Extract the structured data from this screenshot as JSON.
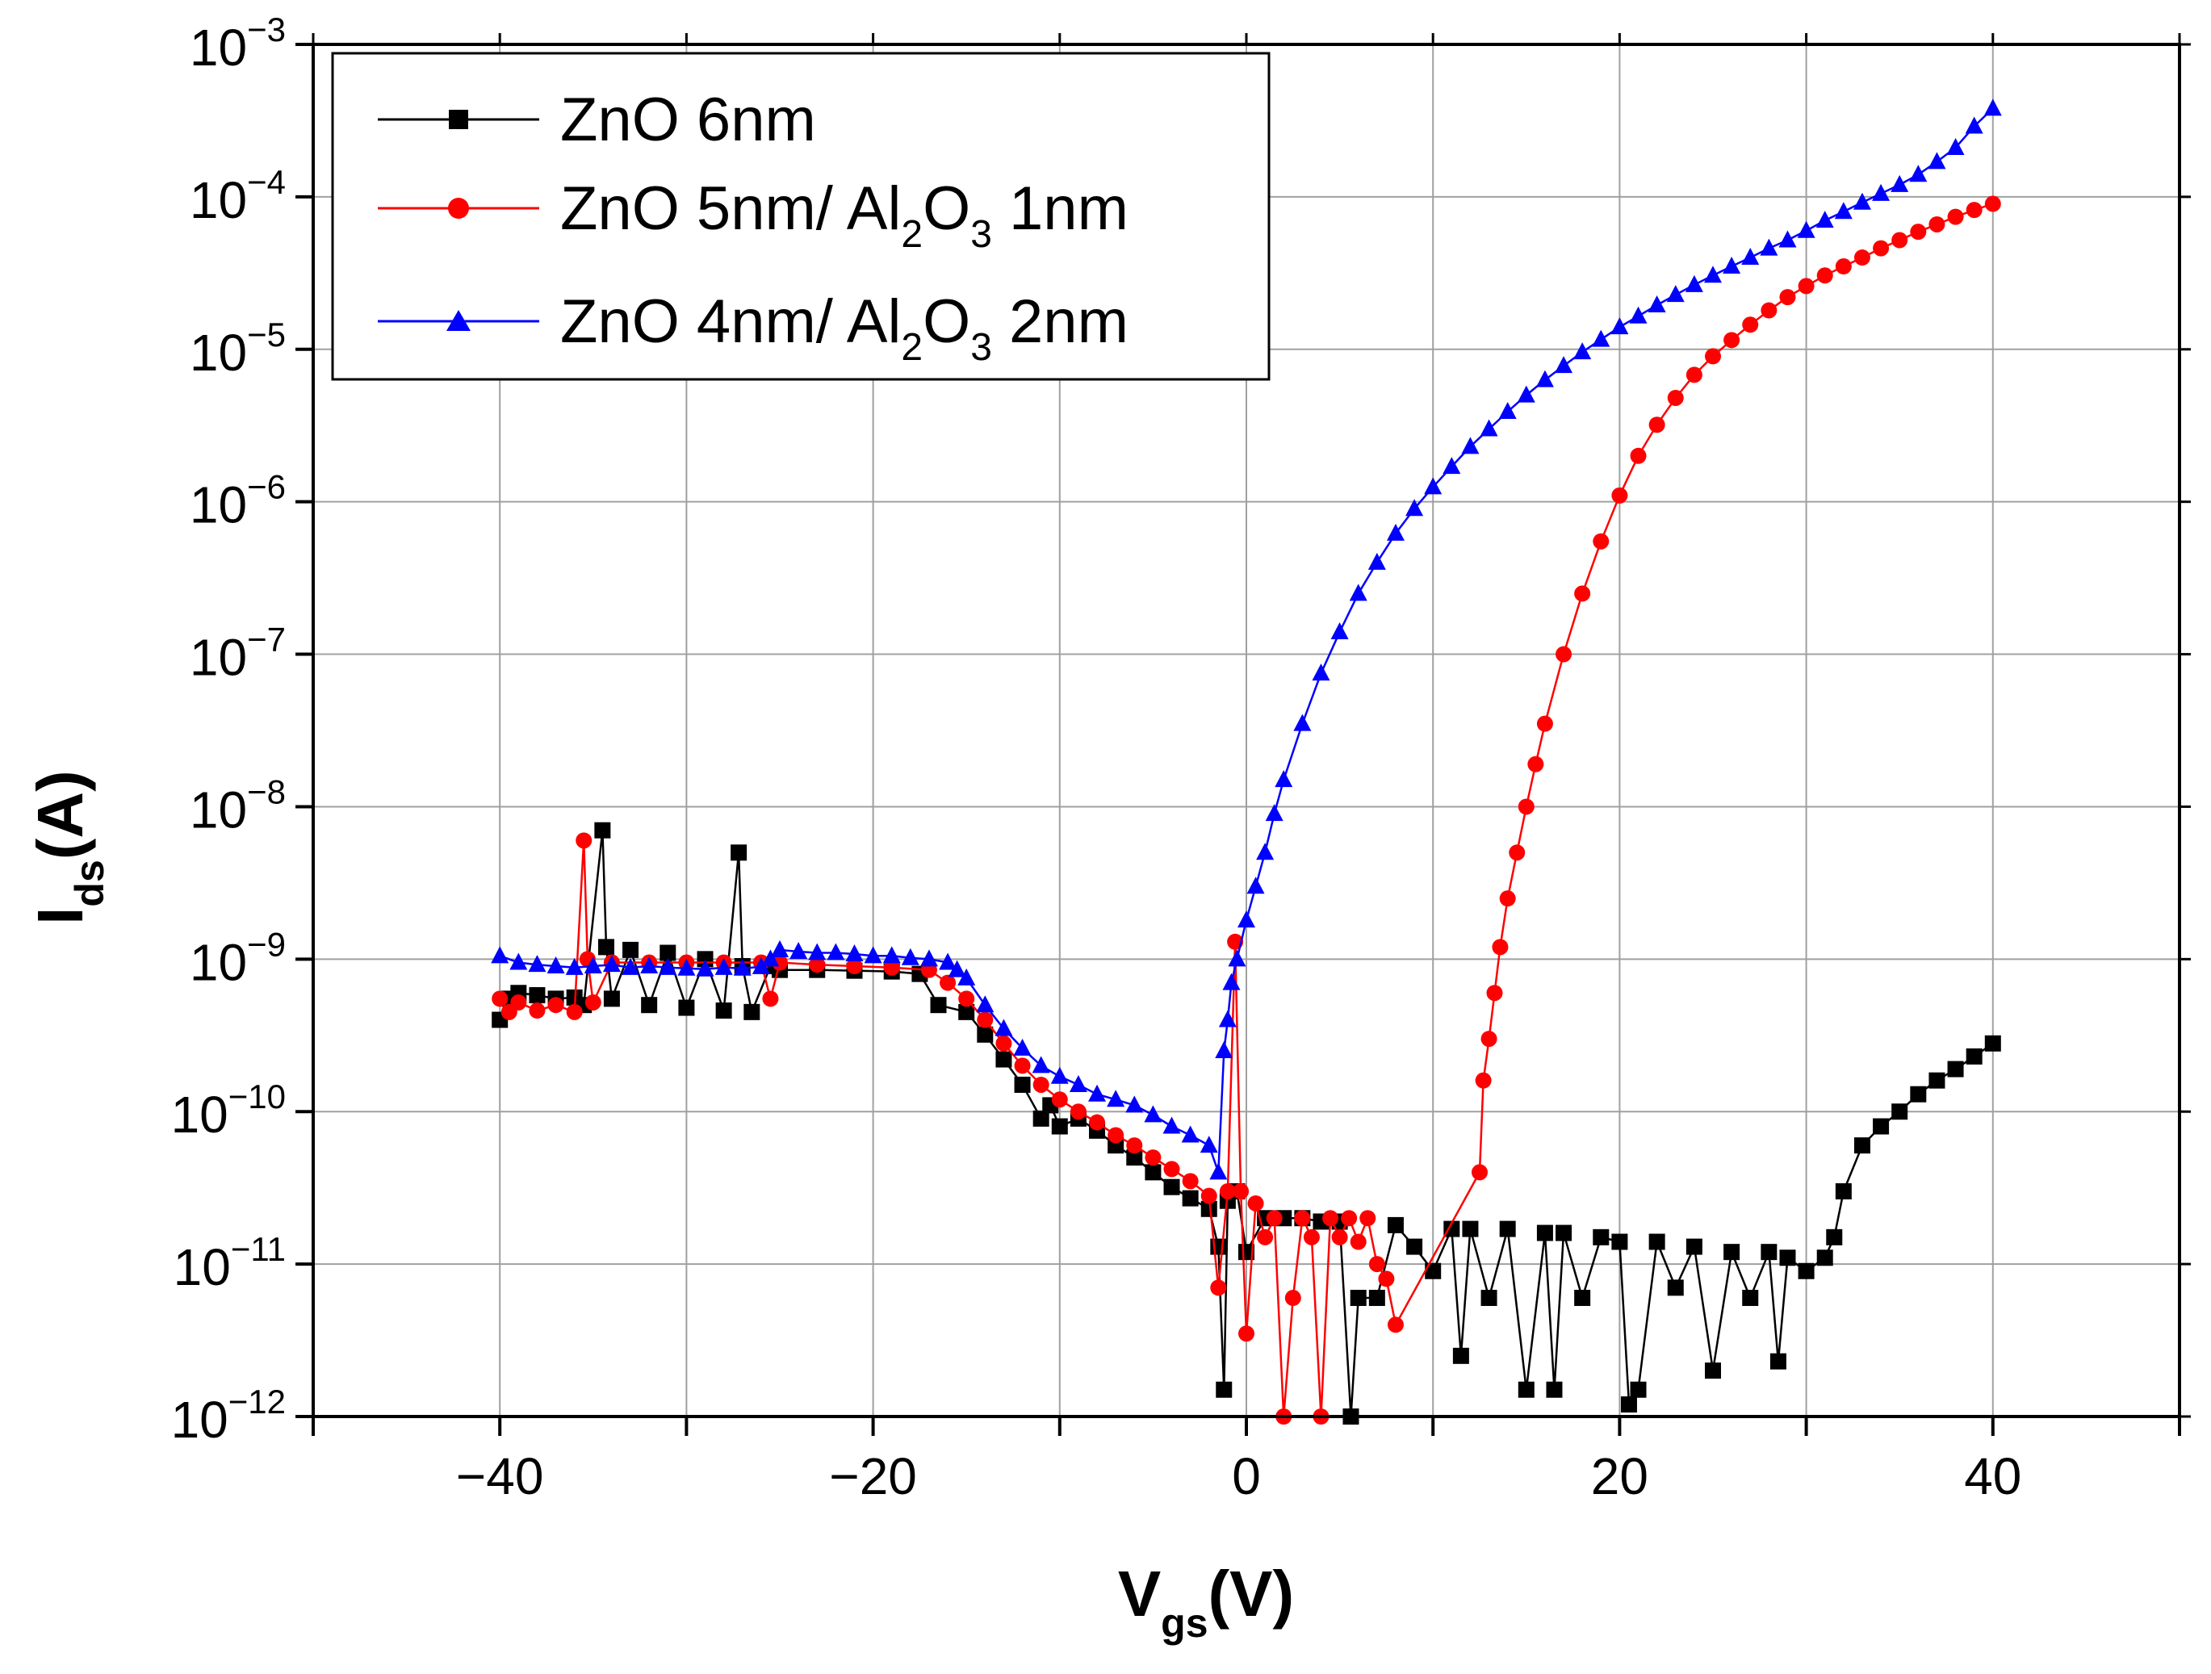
{
  "chart_data": {
    "type": "scatter",
    "xlabel": {
      "main": "V",
      "sub": "gs",
      "unit": "(V)"
    },
    "ylabel": {
      "main": "I",
      "sub": "ds",
      "unit": "(A)"
    },
    "xlim": [
      -50,
      50
    ],
    "ylim_exp": [
      -12,
      -3
    ],
    "y_scale": "log",
    "grid": true,
    "x_tick_labels": [
      "−40",
      "−20",
      "0",
      "20",
      "40"
    ],
    "x_tick_values": [
      -40,
      -20,
      0,
      20,
      40
    ],
    "y_tick_base": "10",
    "y_tick_exponents": [
      "−12",
      "−11",
      "−10",
      "−9",
      "−8",
      "−7",
      "−6",
      "−5",
      "−4",
      "−3"
    ],
    "legend_position": "top-left",
    "legend": [
      {
        "text": "ZnO 6nm",
        "color": "#000000",
        "marker": "square"
      },
      {
        "text": "ZnO 5nm/ Al",
        "sub1": "2",
        "mid": "O",
        "sub2": "3",
        "tail": " 1nm",
        "color": "#ff0000",
        "marker": "circle"
      },
      {
        "text": "ZnO 4nm/ Al",
        "sub1": "2",
        "mid": "O",
        "sub2": "3",
        "tail": " 2nm",
        "color": "#0000ff",
        "marker": "triangle"
      }
    ],
    "series": [
      {
        "name": "ZnO 6nm",
        "color": "#000000",
        "marker": "square",
        "points": [
          [
            -40,
            4e-10
          ],
          [
            -39.5,
            5.5e-10
          ],
          [
            -39,
            6e-10
          ],
          [
            -38,
            5.8e-10
          ],
          [
            -37,
            5.5e-10
          ],
          [
            -36,
            5.6e-10
          ],
          [
            -35.5,
            5e-10
          ],
          [
            -34.5,
            7e-09
          ],
          [
            -34.3,
            1.2e-09
          ],
          [
            -34,
            5.5e-10
          ],
          [
            -33,
            1.15e-09
          ],
          [
            -32,
            5e-10
          ],
          [
            -31,
            1.1e-09
          ],
          [
            -30,
            4.8e-10
          ],
          [
            -29,
            1e-09
          ],
          [
            -28,
            4.6e-10
          ],
          [
            -27.2,
            5e-09
          ],
          [
            -27,
            9e-10
          ],
          [
            -26.5,
            4.5e-10
          ],
          [
            -25.5,
            9e-10
          ],
          [
            -25,
            8.5e-10
          ],
          [
            -23,
            8.5e-10
          ],
          [
            -21,
            8.4e-10
          ],
          [
            -19,
            8.3e-10
          ],
          [
            -17.5,
            8e-10
          ],
          [
            -16.5,
            5e-10
          ],
          [
            -15,
            4.5e-10
          ],
          [
            -14,
            3.2e-10
          ],
          [
            -13,
            2.2e-10
          ],
          [
            -12,
            1.5e-10
          ],
          [
            -11,
            9e-11
          ],
          [
            -10.5,
            1.1e-10
          ],
          [
            -10,
            8e-11
          ],
          [
            -9,
            9e-11
          ],
          [
            -8,
            7.5e-11
          ],
          [
            -7,
            6e-11
          ],
          [
            -6,
            5e-11
          ],
          [
            -5,
            4e-11
          ],
          [
            -4,
            3.2e-11
          ],
          [
            -3,
            2.7e-11
          ],
          [
            -2,
            2.3e-11
          ],
          [
            -1.5,
            1.3e-11
          ],
          [
            -1.2,
            1.5e-12
          ],
          [
            -1,
            2.6e-11
          ],
          [
            -0.5,
            3e-11
          ],
          [
            0,
            1.2e-11
          ],
          [
            1,
            2e-11
          ],
          [
            2,
            2e-11
          ],
          [
            3,
            2e-11
          ],
          [
            4,
            1.9e-11
          ],
          [
            5,
            1.9e-11
          ],
          [
            5.6,
            1e-12
          ],
          [
            6,
            6e-12
          ],
          [
            7,
            6e-12
          ],
          [
            8,
            1.8e-11
          ],
          [
            9,
            1.3e-11
          ],
          [
            10,
            9e-12
          ],
          [
            11,
            1.7e-11
          ],
          [
            11.5,
            2.5e-12
          ],
          [
            12,
            1.7e-11
          ],
          [
            13,
            6e-12
          ],
          [
            14,
            1.7e-11
          ],
          [
            15,
            1.5e-12
          ],
          [
            16,
            1.6e-11
          ],
          [
            16.5,
            1.5e-12
          ],
          [
            17,
            1.6e-11
          ],
          [
            18,
            6e-12
          ],
          [
            19,
            1.5e-11
          ],
          [
            20,
            1.4e-11
          ],
          [
            20.5,
            1.2e-12
          ],
          [
            21,
            1.5e-12
          ],
          [
            22,
            1.4e-11
          ],
          [
            23,
            7e-12
          ],
          [
            24,
            1.3e-11
          ],
          [
            25,
            2e-12
          ],
          [
            26,
            1.2e-11
          ],
          [
            27,
            6e-12
          ],
          [
            28,
            1.2e-11
          ],
          [
            28.5,
            2.3e-12
          ],
          [
            29,
            1.1e-11
          ],
          [
            30,
            9e-12
          ],
          [
            31,
            1.1e-11
          ],
          [
            31.5,
            1.5e-11
          ],
          [
            32,
            3e-11
          ],
          [
            33,
            6e-11
          ],
          [
            34,
            8e-11
          ],
          [
            35,
            1e-10
          ],
          [
            36,
            1.3e-10
          ],
          [
            37,
            1.6e-10
          ],
          [
            38,
            1.9e-10
          ],
          [
            39,
            2.3e-10
          ],
          [
            40,
            2.8e-10
          ]
        ]
      },
      {
        "name": "ZnO 5nm/ Al2O3 1nm",
        "color": "#ff0000",
        "marker": "circle",
        "points": [
          [
            -40,
            5.5e-10
          ],
          [
            -39.5,
            4.5e-10
          ],
          [
            -39,
            5.2e-10
          ],
          [
            -38,
            4.6e-10
          ],
          [
            -37,
            5e-10
          ],
          [
            -36,
            4.5e-10
          ],
          [
            -35.5,
            6e-09
          ],
          [
            -35.3,
            1e-09
          ],
          [
            -35,
            5.2e-10
          ],
          [
            -34,
            9.5e-10
          ],
          [
            -32,
            9.5e-10
          ],
          [
            -30,
            9.5e-10
          ],
          [
            -28,
            9.5e-10
          ],
          [
            -26,
            9.5e-10
          ],
          [
            -25.5,
            5.5e-10
          ],
          [
            -25,
            9.5e-10
          ],
          [
            -23,
            9.2e-10
          ],
          [
            -21,
            9e-10
          ],
          [
            -19,
            8.8e-10
          ],
          [
            -17,
            8.5e-10
          ],
          [
            -16,
            7e-10
          ],
          [
            -15,
            5.5e-10
          ],
          [
            -14,
            4e-10
          ],
          [
            -13,
            2.8e-10
          ],
          [
            -12,
            2e-10
          ],
          [
            -11,
            1.5e-10
          ],
          [
            -10,
            1.2e-10
          ],
          [
            -9,
            1e-10
          ],
          [
            -8,
            8.5e-11
          ],
          [
            -7,
            7e-11
          ],
          [
            -6,
            6e-11
          ],
          [
            -5,
            5e-11
          ],
          [
            -4,
            4.2e-11
          ],
          [
            -3,
            3.5e-11
          ],
          [
            -2,
            2.8e-11
          ],
          [
            -1.5,
            7e-12
          ],
          [
            -1,
            3e-11
          ],
          [
            -0.6,
            1.3e-09
          ],
          [
            -0.3,
            3e-11
          ],
          [
            0,
            3.5e-12
          ],
          [
            0.5,
            2.5e-11
          ],
          [
            1,
            1.5e-11
          ],
          [
            1.5,
            2e-11
          ],
          [
            2,
            1e-12
          ],
          [
            2.5,
            6e-12
          ],
          [
            3,
            2e-11
          ],
          [
            3.5,
            1.5e-11
          ],
          [
            4,
            1e-12
          ],
          [
            4.5,
            2e-11
          ],
          [
            5,
            1.5e-11
          ],
          [
            5.5,
            2e-11
          ],
          [
            6,
            1.4e-11
          ],
          [
            6.5,
            2e-11
          ],
          [
            7,
            1e-11
          ],
          [
            7.5,
            8e-12
          ],
          [
            8,
            4e-12
          ],
          [
            12.5,
            4e-11
          ],
          [
            12.7,
            1.6e-10
          ],
          [
            13,
            3e-10
          ],
          [
            13.3,
            6e-10
          ],
          [
            13.6,
            1.2e-09
          ],
          [
            14,
            2.5e-09
          ],
          [
            14.5,
            5e-09
          ],
          [
            15,
            1e-08
          ],
          [
            15.5,
            1.9e-08
          ],
          [
            16,
            3.5e-08
          ],
          [
            17,
            1e-07
          ],
          [
            18,
            2.5e-07
          ],
          [
            19,
            5.5e-07
          ],
          [
            20,
            1.1e-06
          ],
          [
            21,
            2e-06
          ],
          [
            22,
            3.2e-06
          ],
          [
            23,
            4.8e-06
          ],
          [
            24,
            6.8e-06
          ],
          [
            25,
            9e-06
          ],
          [
            26,
            1.15e-05
          ],
          [
            27,
            1.45e-05
          ],
          [
            28,
            1.8e-05
          ],
          [
            29,
            2.2e-05
          ],
          [
            30,
            2.6e-05
          ],
          [
            31,
            3.05e-05
          ],
          [
            32,
            3.5e-05
          ],
          [
            33,
            4e-05
          ],
          [
            34,
            4.6e-05
          ],
          [
            35,
            5.2e-05
          ],
          [
            36,
            5.9e-05
          ],
          [
            37,
            6.6e-05
          ],
          [
            38,
            7.4e-05
          ],
          [
            39,
            8.2e-05
          ],
          [
            40,
            9e-05
          ]
        ]
      },
      {
        "name": "ZnO 4nm/ Al2O3 2nm",
        "color": "#0000ff",
        "marker": "triangle",
        "points": [
          [
            -40,
            1.05e-09
          ],
          [
            -39,
            9.5e-10
          ],
          [
            -38,
            9.2e-10
          ],
          [
            -37,
            9e-10
          ],
          [
            -36,
            8.8e-10
          ],
          [
            -35,
            9e-10
          ],
          [
            -34,
            9.2e-10
          ],
          [
            -33,
            8.8e-10
          ],
          [
            -32,
            9e-10
          ],
          [
            -31,
            8.8e-10
          ],
          [
            -30,
            8.7e-10
          ],
          [
            -29,
            8.6e-10
          ],
          [
            -28,
            8.8e-10
          ],
          [
            -27,
            8.7e-10
          ],
          [
            -26,
            8.9e-10
          ],
          [
            -25.5,
            1e-09
          ],
          [
            -25,
            1.15e-09
          ],
          [
            -24,
            1.12e-09
          ],
          [
            -23,
            1.1e-09
          ],
          [
            -22,
            1.1e-09
          ],
          [
            -21,
            1.08e-09
          ],
          [
            -20,
            1.05e-09
          ],
          [
            -19,
            1.05e-09
          ],
          [
            -18,
            1.02e-09
          ],
          [
            -17,
            1e-09
          ],
          [
            -16,
            9.5e-10
          ],
          [
            -15.5,
            8.5e-10
          ],
          [
            -15,
            7.5e-10
          ],
          [
            -14,
            5e-10
          ],
          [
            -13,
            3.5e-10
          ],
          [
            -12,
            2.6e-10
          ],
          [
            -11,
            2e-10
          ],
          [
            -10,
            1.7e-10
          ],
          [
            -9,
            1.5e-10
          ],
          [
            -8,
            1.3e-10
          ],
          [
            -7,
            1.2e-10
          ],
          [
            -6,
            1.1e-10
          ],
          [
            -5,
            9.5e-11
          ],
          [
            -4,
            8e-11
          ],
          [
            -3,
            7e-11
          ],
          [
            -2,
            6e-11
          ],
          [
            -1.5,
            4e-11
          ],
          [
            -1.2,
            2.5e-10
          ],
          [
            -1,
            4e-10
          ],
          [
            -0.8,
            7e-10
          ],
          [
            -0.5,
            1e-09
          ],
          [
            0,
            1.8e-09
          ],
          [
            0.5,
            3e-09
          ],
          [
            1,
            5e-09
          ],
          [
            1.5,
            9e-09
          ],
          [
            2,
            1.5e-08
          ],
          [
            3,
            3.5e-08
          ],
          [
            4,
            7.5e-08
          ],
          [
            5,
            1.4e-07
          ],
          [
            6,
            2.5e-07
          ],
          [
            7,
            4e-07
          ],
          [
            8,
            6.2e-07
          ],
          [
            9,
            9e-07
          ],
          [
            10,
            1.25e-06
          ],
          [
            11,
            1.7e-06
          ],
          [
            12,
            2.3e-06
          ],
          [
            13,
            3e-06
          ],
          [
            14,
            3.9e-06
          ],
          [
            15,
            5e-06
          ],
          [
            16,
            6.3e-06
          ],
          [
            17,
            7.8e-06
          ],
          [
            18,
            9.6e-06
          ],
          [
            19,
            1.16e-05
          ],
          [
            20,
            1.4e-05
          ],
          [
            21,
            1.65e-05
          ],
          [
            22,
            1.95e-05
          ],
          [
            23,
            2.28e-05
          ],
          [
            24,
            2.65e-05
          ],
          [
            25,
            3.05e-05
          ],
          [
            26,
            3.5e-05
          ],
          [
            27,
            4e-05
          ],
          [
            28,
            4.6e-05
          ],
          [
            29,
            5.2e-05
          ],
          [
            30,
            6e-05
          ],
          [
            31,
            7e-05
          ],
          [
            32,
            8e-05
          ],
          [
            33,
            9.2e-05
          ],
          [
            34,
            0.000105
          ],
          [
            35,
            0.00012
          ],
          [
            36,
            0.00014
          ],
          [
            37,
            0.00017
          ],
          [
            38,
            0.00021
          ],
          [
            39,
            0.00029
          ],
          [
            40,
            0.00038
          ]
        ]
      }
    ]
  }
}
